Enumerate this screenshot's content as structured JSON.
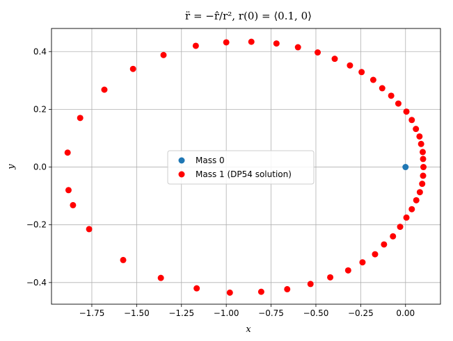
{
  "chart_data": {
    "type": "scatter",
    "title": "r̈ = −r̂/r²,    r(0) = ⟨0.1, 0⟩",
    "xlabel": "x",
    "ylabel": "y",
    "xlim": [
      -1.975,
      0.195
    ],
    "ylim": [
      -0.475,
      0.48
    ],
    "xticks": [
      -1.75,
      -1.5,
      -1.25,
      -1.0,
      -0.75,
      -0.5,
      -0.25,
      0.0
    ],
    "xtick_labels": [
      "−1.75",
      "−1.50",
      "−1.25",
      "−1.00",
      "−0.75",
      "−0.50",
      "−0.25",
      "0.00"
    ],
    "yticks": [
      -0.4,
      -0.2,
      0.0,
      0.2,
      0.4
    ],
    "ytick_labels": [
      "−0.4",
      "−0.2",
      "0.0",
      "0.2",
      "0.4"
    ],
    "grid": true,
    "legend_position": "center",
    "series": [
      {
        "name": "Mass 0",
        "color": "#1f77b4",
        "points": [
          [
            0.0,
            0.0
          ]
        ]
      },
      {
        "name": "Mass 1 (DP54 solution)",
        "color": "#ff0000",
        "points": [
          [
            0.1,
            0.0
          ],
          [
            0.098,
            0.028
          ],
          [
            0.096,
            0.052
          ],
          [
            0.087,
            0.08
          ],
          [
            0.078,
            0.106
          ],
          [
            0.058,
            0.132
          ],
          [
            0.035,
            0.163
          ],
          [
            0.005,
            0.192
          ],
          [
            -0.04,
            0.22
          ],
          [
            -0.08,
            0.247
          ],
          [
            -0.13,
            0.273
          ],
          [
            -0.18,
            0.302
          ],
          [
            -0.245,
            0.329
          ],
          [
            -0.31,
            0.352
          ],
          [
            -0.395,
            0.375
          ],
          [
            -0.49,
            0.397
          ],
          [
            -0.6,
            0.415
          ],
          [
            -0.72,
            0.428
          ],
          [
            -0.86,
            0.434
          ],
          [
            -1.0,
            0.432
          ],
          [
            -1.17,
            0.42
          ],
          [
            -1.35,
            0.388
          ],
          [
            -1.52,
            0.34
          ],
          [
            -1.68,
            0.268
          ],
          [
            -1.815,
            0.17
          ],
          [
            -1.885,
            0.05
          ],
          [
            -1.88,
            -0.08
          ],
          [
            -1.855,
            -0.132
          ],
          [
            -1.765,
            -0.215
          ],
          [
            -1.575,
            -0.322
          ],
          [
            -1.365,
            -0.384
          ],
          [
            -1.165,
            -0.42
          ],
          [
            -0.98,
            -0.435
          ],
          [
            -0.805,
            -0.432
          ],
          [
            -0.66,
            -0.423
          ],
          [
            -0.53,
            -0.405
          ],
          [
            -0.42,
            -0.382
          ],
          [
            -0.32,
            -0.358
          ],
          [
            -0.24,
            -0.33
          ],
          [
            -0.17,
            -0.302
          ],
          [
            -0.12,
            -0.268
          ],
          [
            -0.07,
            -0.24
          ],
          [
            -0.03,
            -0.207
          ],
          [
            0.005,
            -0.175
          ],
          [
            0.035,
            -0.146
          ],
          [
            0.06,
            -0.115
          ],
          [
            0.08,
            -0.087
          ],
          [
            0.093,
            -0.058
          ],
          [
            0.098,
            -0.03
          ]
        ]
      }
    ]
  }
}
